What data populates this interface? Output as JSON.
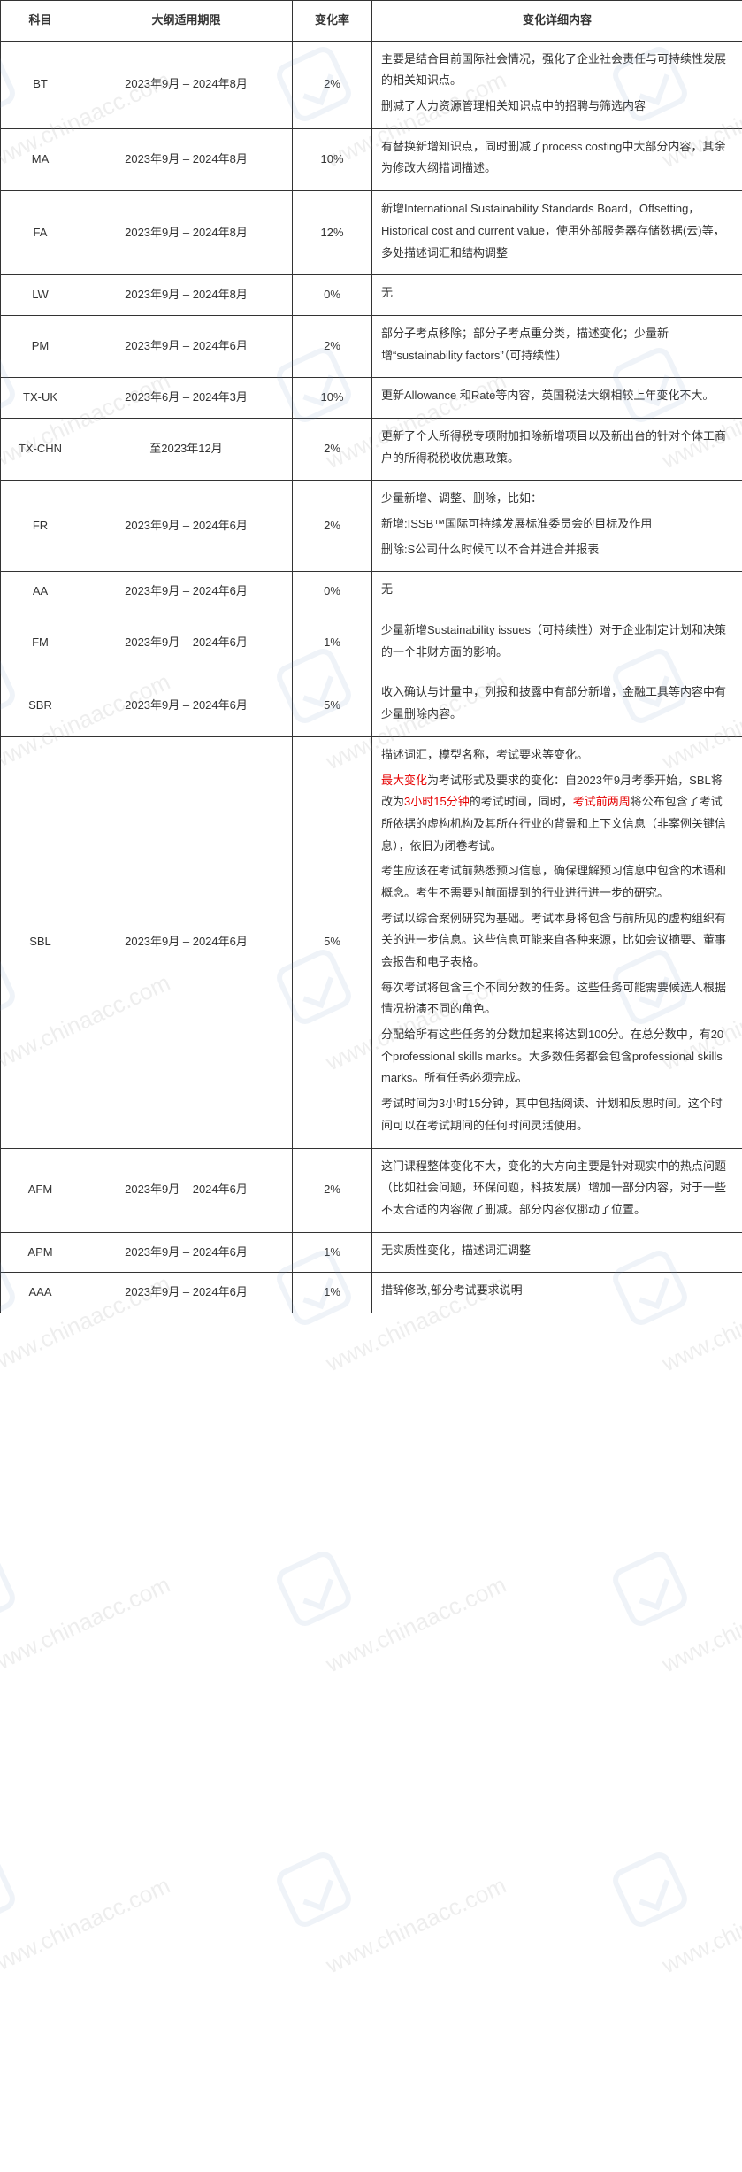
{
  "columns": {
    "subject": "科目",
    "period": "大纲适用期限",
    "rate": "变化率",
    "detail": "变化详细内容"
  },
  "rows": [
    {
      "subject": "BT",
      "period": "2023年9月 – 2024年8月",
      "rate": "2%",
      "paragraphs": [
        {
          "text": "主要是结合目前国际社会情况，强化了企业社会责任与可持续性发展的相关知识点。"
        },
        {
          "text": "删减了人力资源管理相关知识点中的招聘与筛选内容"
        }
      ]
    },
    {
      "subject": "MA",
      "period": "2023年9月 – 2024年8月",
      "rate": "10%",
      "paragraphs": [
        {
          "text": "有替换新增知识点，同时删减了process costing中大部分内容，其余为修改大纲措词描述。"
        }
      ]
    },
    {
      "subject": "FA",
      "period": "2023年9月 – 2024年8月",
      "rate": "12%",
      "paragraphs": [
        {
          "text": "新增International Sustainability Standards Board，Offsetting，Historical cost and current value，使用外部服务器存储数据(云)等，多处描述词汇和结构调整"
        }
      ]
    },
    {
      "subject": "LW",
      "period": "2023年9月 – 2024年8月",
      "rate": "0%",
      "center_detail": true,
      "paragraphs": [
        {
          "text": "无"
        }
      ]
    },
    {
      "subject": "PM",
      "period": "2023年9月 – 2024年6月",
      "rate": "2%",
      "paragraphs": [
        {
          "text": "部分子考点移除；部分子考点重分类，描述变化；少量新增“sustainability factors”（可持续性）"
        }
      ]
    },
    {
      "subject": "TX-UK",
      "period": "2023年6月 – 2024年3月",
      "rate": "10%",
      "paragraphs": [
        {
          "text": "更新Allowance 和Rate等内容，英国税法大纲相较上年变化不大。"
        }
      ]
    },
    {
      "subject": "TX-CHN",
      "period": "至2023年12月",
      "rate": "2%",
      "paragraphs": [
        {
          "text": "更新了个人所得税专项附加扣除新增项目以及新出台的针对个体工商户的所得税税收优惠政策。"
        }
      ]
    },
    {
      "subject": "FR",
      "period": "2023年9月 – 2024年6月",
      "rate": "2%",
      "paragraphs": [
        {
          "text": "少量新增、调整、删除，比如："
        },
        {
          "text": "新增:ISSB™国际可持续发展标准委员会的目标及作用"
        },
        {
          "text": "删除:S公司什么时候可以不合并进合并报表"
        }
      ]
    },
    {
      "subject": "AA",
      "period": "2023年9月 – 2024年6月",
      "rate": "0%",
      "center_detail": true,
      "paragraphs": [
        {
          "text": "无"
        }
      ]
    },
    {
      "subject": "FM",
      "period": "2023年9月 – 2024年6月",
      "rate": "1%",
      "paragraphs": [
        {
          "text": "少量新增Sustainability issues（可持续性）对于企业制定计划和决策的一个非财方面的影响。"
        }
      ]
    },
    {
      "subject": "SBR",
      "period": "2023年9月 – 2024年6月",
      "rate": "5%",
      "paragraphs": [
        {
          "text": "收入确认与计量中，列报和披露中有部分新增，金融工具等内容中有少量删除内容。"
        }
      ]
    },
    {
      "subject": "SBL",
      "period": "2023年9月 – 2024年6月",
      "rate": "5%",
      "paragraphs": [
        {
          "text": "描述词汇，模型名称，考试要求等变化。"
        },
        {
          "segments": [
            {
              "text": "最大变化",
              "red": true
            },
            {
              "text": "为考试形式及要求的变化：自2023年9月考季开始，SBL将改为"
            },
            {
              "text": "3小时15分钟",
              "red": true
            },
            {
              "text": "的考试时间，同时，"
            },
            {
              "text": "考试前两周",
              "red": true
            },
            {
              "text": "将公布包含了考试所依据的虚构机构及其所在行业的背景和上下文信息（非案例关键信息），依旧为闭卷考试。"
            }
          ]
        },
        {
          "text": "考生应该在考试前熟悉预习信息，确保理解预习信息中包含的术语和概念。考生不需要对前面提到的行业进行进一步的研究。"
        },
        {
          "text": "考试以综合案例研究为基础。考试本身将包含与前所见的虚构组织有关的进一步信息。这些信息可能来自各种来源，比如会议摘要、董事会报告和电子表格。"
        },
        {
          "text": "每次考试将包含三个不同分数的任务。这些任务可能需要候选人根据情况扮演不同的角色。"
        },
        {
          "text": "分配给所有这些任务的分数加起来将达到100分。在总分数中，有20个professional skills marks。大多数任务都会包含professional skills marks。所有任务必须完成。"
        },
        {
          "text": "考试时间为3小时15分钟，其中包括阅读、计划和反思时间。这个时间可以在考试期间的任何时间灵活使用。"
        }
      ]
    },
    {
      "subject": "AFM",
      "period": "2023年9月 – 2024年6月",
      "rate": "2%",
      "paragraphs": [
        {
          "text": "这门课程整体变化不大，变化的大方向主要是针对现实中的热点问题（比如社会问题，环保问题，科技发展）增加一部分内容，对于一些不太合适的内容做了删减。部分内容仅挪动了位置。"
        }
      ]
    },
    {
      "subject": "APM",
      "period": "2023年9月 – 2024年6月",
      "rate": "1%",
      "center_detail": true,
      "paragraphs": [
        {
          "text": "无实质性变化，描述词汇调整"
        }
      ]
    },
    {
      "subject": "AAA",
      "period": "2023年9月 – 2024年6月",
      "rate": "1%",
      "center_detail": true,
      "paragraphs": [
        {
          "text": "措辞修改,部分考试要求说明"
        }
      ]
    }
  ],
  "watermark_text": "www.chinaacc.com",
  "highlight_color": "#e60000",
  "text_color": "#333333",
  "border_color": "#333333"
}
